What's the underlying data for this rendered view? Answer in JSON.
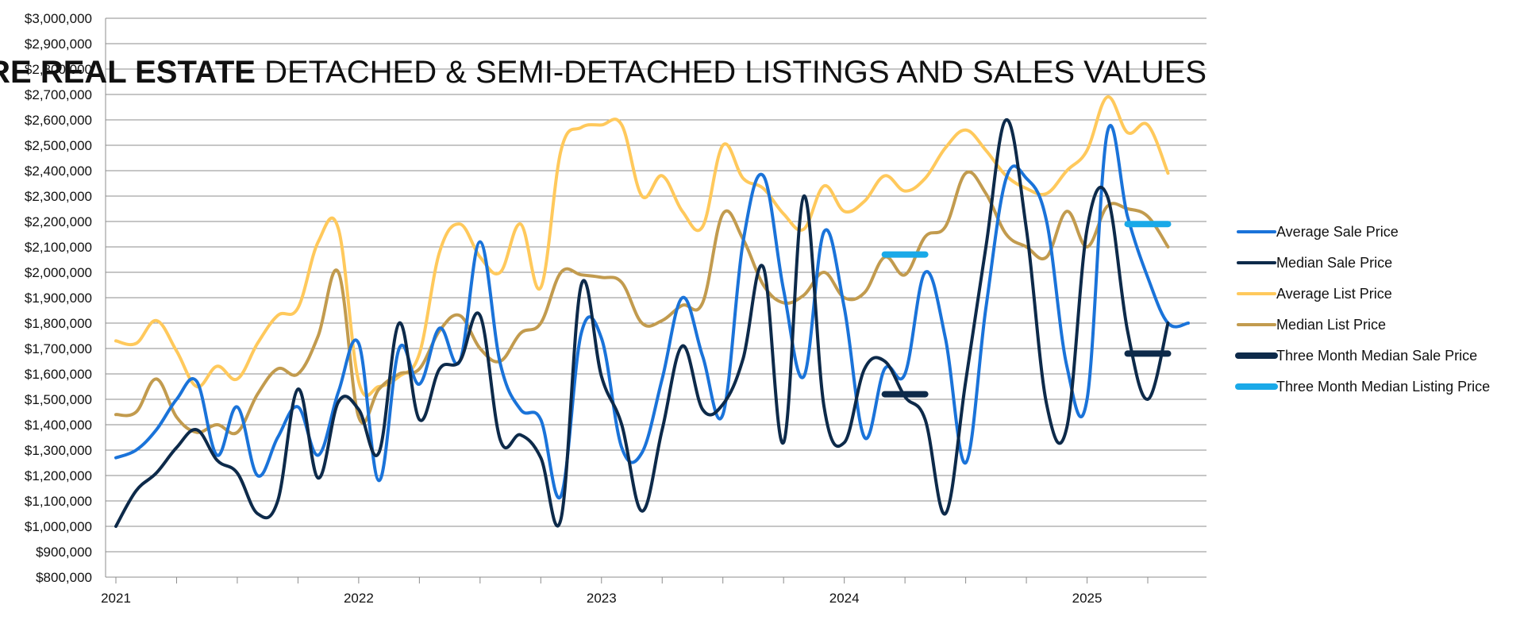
{
  "chart_data": {
    "type": "line",
    "title_bold": "CANMORE REAL ESTATE",
    "title_rest": " DETACHED & SEMI-DETACHED LISTINGS AND SALES VALUES",
    "ylim": [
      800000,
      3000000
    ],
    "y_ticks": [
      {
        "value": 3000000,
        "label": "$3,000,000"
      },
      {
        "value": 2900000,
        "label": "$2,900,000"
      },
      {
        "value": 2800000,
        "label": "$2,800,000"
      },
      {
        "value": 2700000,
        "label": "$2,700,000"
      },
      {
        "value": 2600000,
        "label": "$2,600,000"
      },
      {
        "value": 2500000,
        "label": "$2,500,000"
      },
      {
        "value": 2400000,
        "label": "$2,400,000"
      },
      {
        "value": 2300000,
        "label": "$2,300,000"
      },
      {
        "value": 2200000,
        "label": "$2,200,000"
      },
      {
        "value": 2100000,
        "label": "$2,100,000"
      },
      {
        "value": 2000000,
        "label": "$2,000,000"
      },
      {
        "value": 1900000,
        "label": "$1,900,000"
      },
      {
        "value": 1800000,
        "label": "$1,800,000"
      },
      {
        "value": 1700000,
        "label": "$1,700,000"
      },
      {
        "value": 1600000,
        "label": "$1,600,000"
      },
      {
        "value": 1500000,
        "label": "$1,500,000"
      },
      {
        "value": 1400000,
        "label": "$1,400,000"
      },
      {
        "value": 1300000,
        "label": "$1,300,000"
      },
      {
        "value": 1200000,
        "label": "$1,200,000"
      },
      {
        "value": 1100000,
        "label": "$1,100,000"
      },
      {
        "value": 1000000,
        "label": "$1,000,000"
      },
      {
        "value": 900000,
        "label": "$900,000"
      },
      {
        "value": 800000,
        "label": "$800,000"
      }
    ],
    "x_start": "2021-01",
    "x_end": "2025-06",
    "x_tick_labels": [
      {
        "month": "2021-01",
        "label": "2021"
      },
      {
        "month": "2022-01",
        "label": "2022"
      },
      {
        "month": "2023-01",
        "label": "2023"
      },
      {
        "month": "2024-01",
        "label": "2024"
      },
      {
        "month": "2025-01",
        "label": "2025"
      }
    ],
    "grid": true,
    "legend_position": "right",
    "series": [
      {
        "name": "Average Sale Price",
        "color": "#1a73d9",
        "width": 4,
        "style": "line",
        "points": [
          [
            "2021-01",
            1270000
          ],
          [
            "2021-02",
            1300000
          ],
          [
            "2021-03",
            1380000
          ],
          [
            "2021-04",
            1500000
          ],
          [
            "2021-05",
            1570000
          ],
          [
            "2021-06",
            1280000
          ],
          [
            "2021-07",
            1470000
          ],
          [
            "2021-08",
            1200000
          ],
          [
            "2021-09",
            1350000
          ],
          [
            "2021-10",
            1470000
          ],
          [
            "2021-11",
            1280000
          ],
          [
            "2021-12",
            1530000
          ],
          [
            "2022-01",
            1720000
          ],
          [
            "2022-02",
            1180000
          ],
          [
            "2022-03",
            1700000
          ],
          [
            "2022-04",
            1560000
          ],
          [
            "2022-05",
            1780000
          ],
          [
            "2022-06",
            1650000
          ],
          [
            "2022-07",
            2120000
          ],
          [
            "2022-08",
            1640000
          ],
          [
            "2022-09",
            1460000
          ],
          [
            "2022-10",
            1420000
          ],
          [
            "2022-11",
            1120000
          ],
          [
            "2022-12",
            1760000
          ],
          [
            "2023-01",
            1740000
          ],
          [
            "2023-02",
            1310000
          ],
          [
            "2023-03",
            1290000
          ],
          [
            "2023-04",
            1580000
          ],
          [
            "2023-05",
            1900000
          ],
          [
            "2023-06",
            1670000
          ],
          [
            "2023-07",
            1440000
          ],
          [
            "2023-08",
            2120000
          ],
          [
            "2023-09",
            2380000
          ],
          [
            "2023-10",
            1930000
          ],
          [
            "2023-11",
            1590000
          ],
          [
            "2023-12",
            2160000
          ],
          [
            "2024-01",
            1860000
          ],
          [
            "2024-02",
            1350000
          ],
          [
            "2024-03",
            1620000
          ],
          [
            "2024-04",
            1600000
          ],
          [
            "2024-05",
            2000000
          ],
          [
            "2024-06",
            1740000
          ],
          [
            "2024-07",
            1250000
          ],
          [
            "2024-08",
            1860000
          ],
          [
            "2024-09",
            2370000
          ],
          [
            "2024-10",
            2370000
          ],
          [
            "2024-11",
            2200000
          ],
          [
            "2024-12",
            1630000
          ],
          [
            "2025-01",
            1500000
          ],
          [
            "2025-02",
            2550000
          ],
          [
            "2025-03",
            2220000
          ],
          [
            "2025-04",
            1980000
          ],
          [
            "2025-05",
            1800000
          ],
          [
            "2025-06",
            1800000
          ]
        ]
      },
      {
        "name": "Median Sale Price",
        "color": "#0d2a4a",
        "width": 4,
        "style": "line",
        "points": [
          [
            "2021-01",
            1000000
          ],
          [
            "2021-02",
            1140000
          ],
          [
            "2021-03",
            1210000
          ],
          [
            "2021-04",
            1310000
          ],
          [
            "2021-05",
            1380000
          ],
          [
            "2021-06",
            1260000
          ],
          [
            "2021-07",
            1210000
          ],
          [
            "2021-08",
            1050000
          ],
          [
            "2021-09",
            1100000
          ],
          [
            "2021-10",
            1540000
          ],
          [
            "2021-11",
            1190000
          ],
          [
            "2021-12",
            1490000
          ],
          [
            "2022-01",
            1460000
          ],
          [
            "2022-02",
            1290000
          ],
          [
            "2022-03",
            1800000
          ],
          [
            "2022-04",
            1420000
          ],
          [
            "2022-05",
            1620000
          ],
          [
            "2022-06",
            1650000
          ],
          [
            "2022-07",
            1830000
          ],
          [
            "2022-08",
            1340000
          ],
          [
            "2022-09",
            1360000
          ],
          [
            "2022-10",
            1270000
          ],
          [
            "2022-11",
            1030000
          ],
          [
            "2022-12",
            1950000
          ],
          [
            "2023-01",
            1590000
          ],
          [
            "2023-02",
            1400000
          ],
          [
            "2023-03",
            1060000
          ],
          [
            "2023-04",
            1380000
          ],
          [
            "2023-05",
            1710000
          ],
          [
            "2023-06",
            1460000
          ],
          [
            "2023-07",
            1480000
          ],
          [
            "2023-08",
            1660000
          ],
          [
            "2023-09",
            2020000
          ],
          [
            "2023-10",
            1330000
          ],
          [
            "2023-11",
            2300000
          ],
          [
            "2023-12",
            1470000
          ],
          [
            "2024-01",
            1330000
          ],
          [
            "2024-02",
            1620000
          ],
          [
            "2024-03",
            1650000
          ],
          [
            "2024-04",
            1510000
          ],
          [
            "2024-05",
            1420000
          ],
          [
            "2024-06",
            1050000
          ],
          [
            "2024-07",
            1570000
          ],
          [
            "2024-08",
            2100000
          ],
          [
            "2024-09",
            2600000
          ],
          [
            "2024-10",
            2170000
          ],
          [
            "2024-11",
            1480000
          ],
          [
            "2024-12",
            1390000
          ],
          [
            "2025-01",
            2170000
          ],
          [
            "2025-02",
            2300000
          ],
          [
            "2025-03",
            1770000
          ],
          [
            "2025-04",
            1500000
          ],
          [
            "2025-05",
            1800000
          ]
        ]
      },
      {
        "name": "Average List Price",
        "color": "#ffc95c",
        "width": 4,
        "style": "line",
        "points": [
          [
            "2021-01",
            1730000
          ],
          [
            "2021-02",
            1720000
          ],
          [
            "2021-03",
            1810000
          ],
          [
            "2021-04",
            1690000
          ],
          [
            "2021-05",
            1550000
          ],
          [
            "2021-06",
            1630000
          ],
          [
            "2021-07",
            1580000
          ],
          [
            "2021-08",
            1720000
          ],
          [
            "2021-09",
            1830000
          ],
          [
            "2021-10",
            1860000
          ],
          [
            "2021-11",
            2120000
          ],
          [
            "2021-12",
            2170000
          ],
          [
            "2022-01",
            1570000
          ],
          [
            "2022-02",
            1550000
          ],
          [
            "2022-03",
            1590000
          ],
          [
            "2022-04",
            1680000
          ],
          [
            "2022-05",
            2080000
          ],
          [
            "2022-06",
            2190000
          ],
          [
            "2022-07",
            2060000
          ],
          [
            "2022-08",
            2000000
          ],
          [
            "2022-09",
            2190000
          ],
          [
            "2022-10",
            1940000
          ],
          [
            "2022-11",
            2480000
          ],
          [
            "2022-12",
            2570000
          ],
          [
            "2023-01",
            2580000
          ],
          [
            "2023-02",
            2580000
          ],
          [
            "2023-03",
            2300000
          ],
          [
            "2023-04",
            2380000
          ],
          [
            "2023-05",
            2240000
          ],
          [
            "2023-06",
            2180000
          ],
          [
            "2023-07",
            2500000
          ],
          [
            "2023-08",
            2370000
          ],
          [
            "2023-09",
            2330000
          ],
          [
            "2023-10",
            2230000
          ],
          [
            "2023-11",
            2170000
          ],
          [
            "2023-12",
            2340000
          ],
          [
            "2024-01",
            2240000
          ],
          [
            "2024-02",
            2280000
          ],
          [
            "2024-03",
            2380000
          ],
          [
            "2024-04",
            2320000
          ],
          [
            "2024-05",
            2370000
          ],
          [
            "2024-06",
            2490000
          ],
          [
            "2024-07",
            2560000
          ],
          [
            "2024-08",
            2480000
          ],
          [
            "2024-09",
            2380000
          ],
          [
            "2024-10",
            2330000
          ],
          [
            "2024-11",
            2310000
          ],
          [
            "2024-12",
            2400000
          ],
          [
            "2025-01",
            2480000
          ],
          [
            "2025-02",
            2690000
          ],
          [
            "2025-03",
            2550000
          ],
          [
            "2025-04",
            2580000
          ],
          [
            "2025-05",
            2390000
          ]
        ]
      },
      {
        "name": "Median List Price",
        "color": "#c29b4e",
        "width": 4,
        "style": "line",
        "points": [
          [
            "2021-01",
            1440000
          ],
          [
            "2021-02",
            1450000
          ],
          [
            "2021-03",
            1580000
          ],
          [
            "2021-04",
            1430000
          ],
          [
            "2021-05",
            1370000
          ],
          [
            "2021-06",
            1400000
          ],
          [
            "2021-07",
            1370000
          ],
          [
            "2021-08",
            1520000
          ],
          [
            "2021-09",
            1620000
          ],
          [
            "2021-10",
            1600000
          ],
          [
            "2021-11",
            1750000
          ],
          [
            "2021-12",
            2000000
          ],
          [
            "2022-01",
            1430000
          ],
          [
            "2022-02",
            1540000
          ],
          [
            "2022-03",
            1600000
          ],
          [
            "2022-04",
            1620000
          ],
          [
            "2022-05",
            1770000
          ],
          [
            "2022-06",
            1830000
          ],
          [
            "2022-07",
            1700000
          ],
          [
            "2022-08",
            1650000
          ],
          [
            "2022-09",
            1760000
          ],
          [
            "2022-10",
            1800000
          ],
          [
            "2022-11",
            2000000
          ],
          [
            "2022-12",
            1990000
          ],
          [
            "2023-01",
            1980000
          ],
          [
            "2023-02",
            1960000
          ],
          [
            "2023-03",
            1800000
          ],
          [
            "2023-04",
            1810000
          ],
          [
            "2023-05",
            1870000
          ],
          [
            "2023-06",
            1880000
          ],
          [
            "2023-07",
            2230000
          ],
          [
            "2023-08",
            2130000
          ],
          [
            "2023-09",
            1950000
          ],
          [
            "2023-10",
            1880000
          ],
          [
            "2023-11",
            1910000
          ],
          [
            "2023-12",
            2000000
          ],
          [
            "2024-01",
            1900000
          ],
          [
            "2024-02",
            1920000
          ],
          [
            "2024-03",
            2060000
          ],
          [
            "2024-04",
            1990000
          ],
          [
            "2024-05",
            2140000
          ],
          [
            "2024-06",
            2180000
          ],
          [
            "2024-07",
            2390000
          ],
          [
            "2024-08",
            2310000
          ],
          [
            "2024-09",
            2150000
          ],
          [
            "2024-10",
            2100000
          ],
          [
            "2024-11",
            2060000
          ],
          [
            "2024-12",
            2240000
          ],
          [
            "2025-01",
            2100000
          ],
          [
            "2025-02",
            2260000
          ],
          [
            "2025-03",
            2250000
          ],
          [
            "2025-04",
            2220000
          ],
          [
            "2025-05",
            2100000
          ]
        ]
      },
      {
        "name": "Three Month Median Sale Price",
        "color": "#0d2a4a",
        "width": 8,
        "style": "segments",
        "segments": [
          {
            "from": "2024-03",
            "to": "2024-05",
            "value": 1520000
          },
          {
            "from": "2025-03",
            "to": "2025-05",
            "value": 1680000
          }
        ]
      },
      {
        "name": "Three Month Median Listing Price",
        "color": "#1aa9e8",
        "width": 8,
        "style": "segments",
        "segments": [
          {
            "from": "2024-03",
            "to": "2024-05",
            "value": 2070000
          },
          {
            "from": "2025-03",
            "to": "2025-05",
            "value": 2190000
          }
        ]
      }
    ]
  }
}
